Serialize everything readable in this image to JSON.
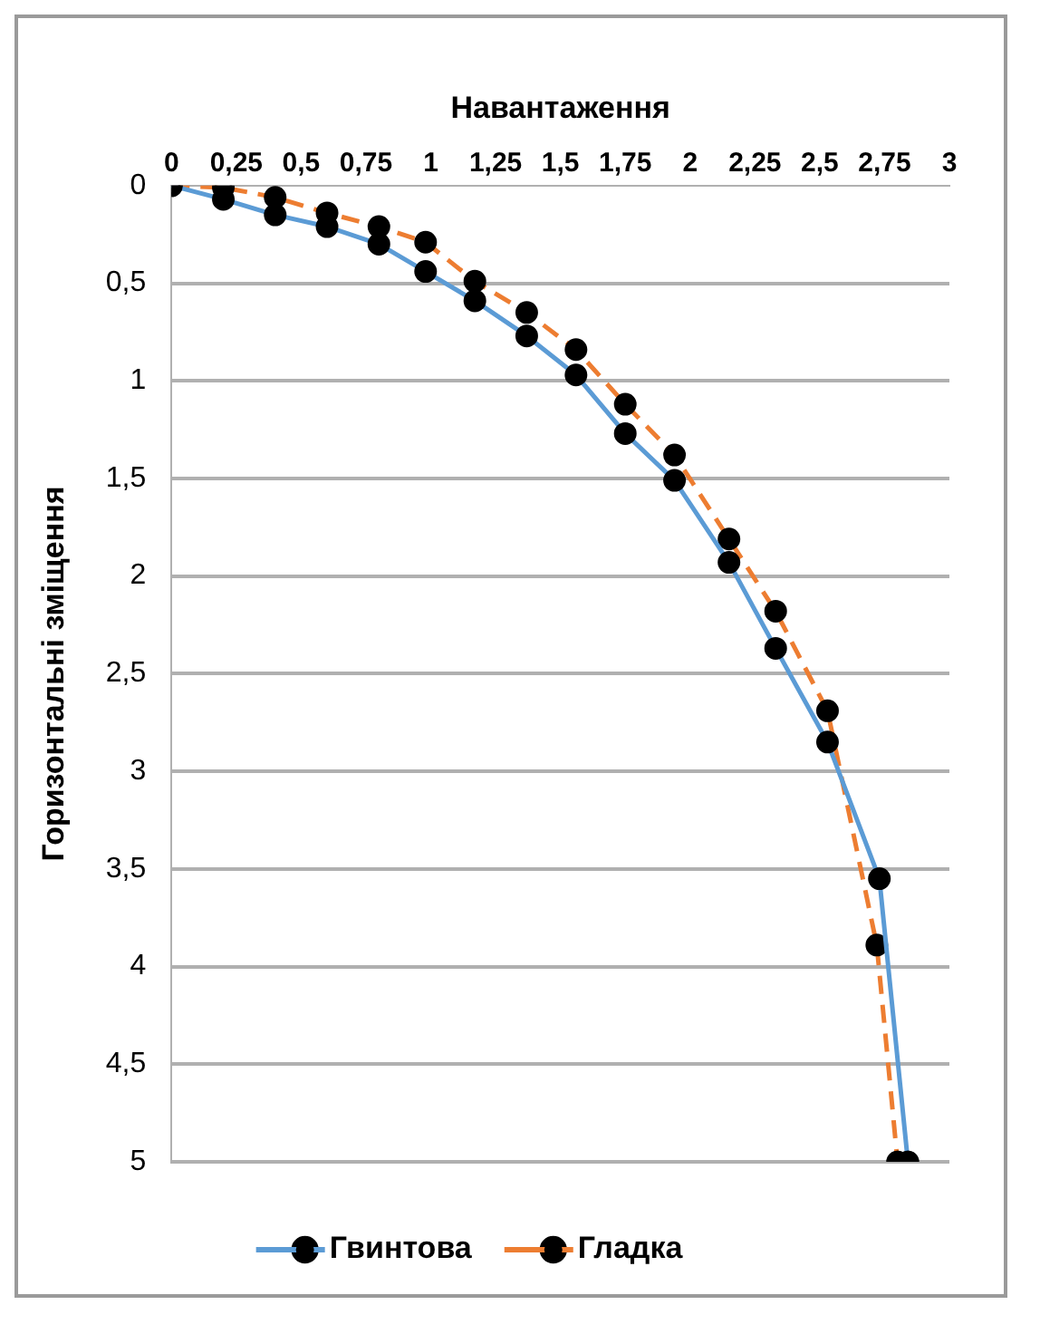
{
  "chart_data": {
    "type": "line",
    "xlabel": "Навантаження",
    "ylabel": "Горизонтальні зміщення",
    "xlim": [
      0,
      3
    ],
    "xticks": [
      0,
      {
        "value": 0.25,
        "label": "0,25"
      },
      {
        "value": 0.5,
        "label": "0,5"
      },
      {
        "value": 0.75,
        "label": "0,75"
      },
      1,
      {
        "value": 1.25,
        "label": "1,25"
      },
      {
        "value": 1.5,
        "label": "1,5"
      },
      {
        "value": 1.75,
        "label": "1,75"
      },
      2,
      {
        "value": 2.25,
        "label": "2,25"
      },
      {
        "value": 2.5,
        "label": "2,5"
      },
      {
        "value": 2.75,
        "label": "2,75"
      },
      3
    ],
    "ylim": [
      5,
      0
    ],
    "yticks": [
      0,
      {
        "value": 0.5,
        "label": "0,5"
      },
      1,
      {
        "value": 1.5,
        "label": "1,5"
      },
      2,
      {
        "value": 2.5,
        "label": "2,5"
      },
      3,
      {
        "value": 3.5,
        "label": "3,5"
      },
      4,
      {
        "value": 4.5,
        "label": "4,5"
      },
      5
    ],
    "grid": "y",
    "legend": "bottom",
    "marker": "circle",
    "series": [
      {
        "name": "Гвинтова",
        "color": "#5b9bd5",
        "line_style": "solid",
        "x": [
          0,
          0.2,
          0.4,
          0.6,
          0.8,
          0.98,
          1.17,
          1.37,
          1.56,
          1.75,
          1.94,
          2.15,
          2.33,
          2.53,
          2.73,
          2.84
        ],
        "values": [
          0,
          0.07,
          0.15,
          0.21,
          0.3,
          0.44,
          0.59,
          0.77,
          0.97,
          1.27,
          1.51,
          1.93,
          2.37,
          2.85,
          3.55,
          5
        ]
      },
      {
        "name": "Гладка",
        "color": "#ed7d31",
        "line_style": "dashed",
        "x": [
          0,
          0.2,
          0.4,
          0.6,
          0.8,
          0.98,
          1.17,
          1.37,
          1.56,
          1.75,
          1.94,
          2.15,
          2.33,
          2.53,
          2.72,
          2.8
        ],
        "values": [
          0,
          0.01,
          0.06,
          0.14,
          0.21,
          0.29,
          0.49,
          0.65,
          0.84,
          1.12,
          1.38,
          1.81,
          2.18,
          2.69,
          3.89,
          5
        ]
      }
    ]
  }
}
